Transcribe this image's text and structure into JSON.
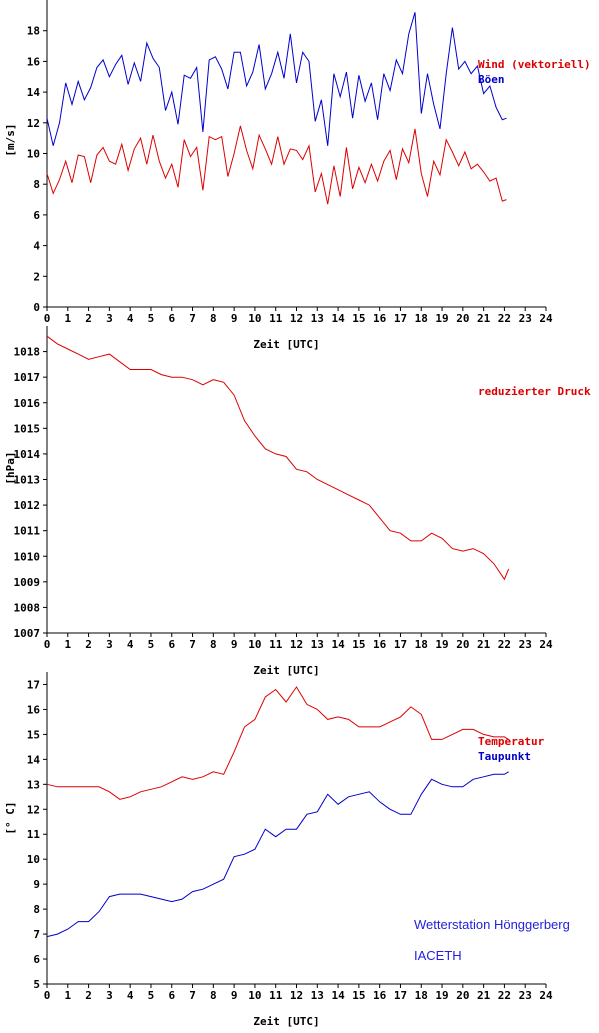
{
  "station": {
    "name": "Wetterstation Hönggerberg",
    "org": "IACETH"
  },
  "chart_data": [
    {
      "type": "line",
      "xlabel": "Zeit [UTC]",
      "ylabel": "[m/s]",
      "xlim": [
        0,
        24
      ],
      "ylim": [
        0,
        20
      ],
      "x_ticks": [
        0,
        1,
        2,
        3,
        4,
        5,
        6,
        7,
        8,
        9,
        10,
        11,
        12,
        13,
        14,
        15,
        16,
        17,
        18,
        19,
        20,
        21,
        22,
        23,
        24
      ],
      "y_ticks": [
        0,
        2,
        4,
        6,
        8,
        10,
        12,
        14,
        16,
        18
      ],
      "series": [
        {
          "name": "Wind (vektoriell)",
          "color": "#dd0000",
          "x": [
            0,
            0.3,
            0.6,
            0.9,
            1.2,
            1.5,
            1.8,
            2.1,
            2.4,
            2.7,
            3,
            3.3,
            3.6,
            3.9,
            4.2,
            4.5,
            4.8,
            5.1,
            5.4,
            5.7,
            6,
            6.3,
            6.6,
            6.9,
            7.2,
            7.5,
            7.8,
            8.1,
            8.4,
            8.7,
            9,
            9.3,
            9.6,
            9.9,
            10.2,
            10.5,
            10.8,
            11.1,
            11.4,
            11.7,
            12,
            12.3,
            12.6,
            12.9,
            13.2,
            13.5,
            13.8,
            14.1,
            14.4,
            14.7,
            15,
            15.3,
            15.6,
            15.9,
            16.2,
            16.5,
            16.8,
            17.1,
            17.4,
            17.7,
            18,
            18.3,
            18.6,
            18.9,
            19.2,
            19.5,
            19.8,
            20.1,
            20.4,
            20.7,
            21,
            21.3,
            21.6,
            21.9,
            22.1
          ],
          "y": [
            8.7,
            7.4,
            8.3,
            9.5,
            8.1,
            9.9,
            9.8,
            8.1,
            9.9,
            10.4,
            9.5,
            9.3,
            10.6,
            8.9,
            10.3,
            11.0,
            9.3,
            11.2,
            9.5,
            8.4,
            9.3,
            7.8,
            10.9,
            9.8,
            10.4,
            7.6,
            11.1,
            10.9,
            11.1,
            8.5,
            10.0,
            11.8,
            10.2,
            9.0,
            11.2,
            10.3,
            9.3,
            11.1,
            9.3,
            10.3,
            10.2,
            9.6,
            10.5,
            7.5,
            8.7,
            6.7,
            9.2,
            7.2,
            10.4,
            7.7,
            9.1,
            8.1,
            9.3,
            8.2,
            9.5,
            10.2,
            8.3,
            10.3,
            9.4,
            11.6,
            8.7,
            7.2,
            9.5,
            8.6,
            10.9,
            10.1,
            9.2,
            10.1,
            9.0,
            9.3,
            8.8,
            8.2,
            8.4,
            6.9,
            7.0
          ]
        },
        {
          "name": "Böen",
          "color": "#0000cc",
          "x": [
            0,
            0.3,
            0.6,
            0.9,
            1.2,
            1.5,
            1.8,
            2.1,
            2.4,
            2.7,
            3,
            3.3,
            3.6,
            3.9,
            4.2,
            4.5,
            4.8,
            5.1,
            5.4,
            5.7,
            6,
            6.3,
            6.6,
            6.9,
            7.2,
            7.5,
            7.8,
            8.1,
            8.4,
            8.7,
            9,
            9.3,
            9.6,
            9.9,
            10.2,
            10.5,
            10.8,
            11.1,
            11.4,
            11.7,
            12,
            12.3,
            12.6,
            12.9,
            13.2,
            13.5,
            13.8,
            14.1,
            14.4,
            14.7,
            15,
            15.3,
            15.6,
            15.9,
            16.2,
            16.5,
            16.8,
            17.1,
            17.4,
            17.7,
            18,
            18.3,
            18.6,
            18.9,
            19.2,
            19.5,
            19.8,
            20.1,
            20.4,
            20.7,
            21,
            21.3,
            21.6,
            21.9,
            22.1
          ],
          "y": [
            12.3,
            10.5,
            12.0,
            14.6,
            13.2,
            14.7,
            13.5,
            14.3,
            15.6,
            16.1,
            15.0,
            15.8,
            16.4,
            14.5,
            15.9,
            14.7,
            17.2,
            16.2,
            15.6,
            12.8,
            14.0,
            11.9,
            15.1,
            14.9,
            15.6,
            11.4,
            16.1,
            16.3,
            15.5,
            14.2,
            16.6,
            16.6,
            14.4,
            15.3,
            17.1,
            14.2,
            15.2,
            16.6,
            14.9,
            17.8,
            14.6,
            16.6,
            16.0,
            12.1,
            13.5,
            10.5,
            15.2,
            13.7,
            15.3,
            12.3,
            15.1,
            13.4,
            14.6,
            12.2,
            15.2,
            14.1,
            16.1,
            15.2,
            17.8,
            19.2,
            12.6,
            15.2,
            13.2,
            11.6,
            15.2,
            18.2,
            15.5,
            16.0,
            15.2,
            15.7,
            13.9,
            14.4,
            13.0,
            12.2,
            12.3
          ]
        }
      ]
    },
    {
      "type": "line",
      "xlabel": "Zeit [UTC]",
      "ylabel": "[hPa]",
      "xlim": [
        0,
        24
      ],
      "ylim": [
        1007,
        1019
      ],
      "x_ticks": [
        0,
        1,
        2,
        3,
        4,
        5,
        6,
        7,
        8,
        9,
        10,
        11,
        12,
        13,
        14,
        15,
        16,
        17,
        18,
        19,
        20,
        21,
        22,
        23,
        24
      ],
      "y_ticks": [
        1007,
        1008,
        1009,
        1010,
        1011,
        1012,
        1013,
        1014,
        1015,
        1016,
        1017,
        1018
      ],
      "series": [
        {
          "name": "reduzierter Druck",
          "color": "#dd0000",
          "x": [
            0,
            0.5,
            1,
            1.5,
            2,
            2.5,
            3,
            3.5,
            4,
            4.5,
            5,
            5.5,
            6,
            6.5,
            7,
            7.5,
            8,
            8.5,
            9,
            9.5,
            10,
            10.5,
            11,
            11.5,
            12,
            12.5,
            13,
            13.5,
            14,
            14.5,
            15,
            15.5,
            16,
            16.5,
            17,
            17.5,
            18,
            18.5,
            19,
            19.5,
            20,
            20.5,
            21,
            21.5,
            22,
            22.2
          ],
          "y": [
            1018.6,
            1018.3,
            1018.1,
            1017.9,
            1017.7,
            1017.8,
            1017.9,
            1017.6,
            1017.3,
            1017.3,
            1017.3,
            1017.1,
            1017.0,
            1017.0,
            1016.9,
            1016.7,
            1016.9,
            1016.8,
            1016.3,
            1015.3,
            1014.7,
            1014.2,
            1014.0,
            1013.9,
            1013.4,
            1013.3,
            1013.0,
            1012.8,
            1012.6,
            1012.4,
            1012.2,
            1012.0,
            1011.5,
            1011.0,
            1010.9,
            1010.6,
            1010.6,
            1010.9,
            1010.7,
            1010.3,
            1010.2,
            1010.3,
            1010.1,
            1009.7,
            1009.1,
            1009.5
          ]
        }
      ]
    },
    {
      "type": "line",
      "xlabel": "Zeit [UTC]",
      "ylabel": "[° C]",
      "xlim": [
        0,
        24
      ],
      "ylim": [
        5,
        17.5
      ],
      "x_ticks": [
        0,
        1,
        2,
        3,
        4,
        5,
        6,
        7,
        8,
        9,
        10,
        11,
        12,
        13,
        14,
        15,
        16,
        17,
        18,
        19,
        20,
        21,
        22,
        23,
        24
      ],
      "y_ticks": [
        5,
        6,
        7,
        8,
        9,
        10,
        11,
        12,
        13,
        14,
        15,
        16,
        17
      ],
      "series": [
        {
          "name": "Temperatur",
          "color": "#dd0000",
          "x": [
            0,
            0.5,
            1,
            1.5,
            2,
            2.5,
            3,
            3.5,
            4,
            4.5,
            5,
            5.5,
            6,
            6.5,
            7,
            7.5,
            8,
            8.5,
            9,
            9.5,
            10,
            10.5,
            11,
            11.5,
            12,
            12.5,
            13,
            13.5,
            14,
            14.5,
            15,
            15.5,
            16,
            16.5,
            17,
            17.5,
            18,
            18.5,
            19,
            19.5,
            20,
            20.5,
            21,
            21.5,
            22,
            22.2
          ],
          "y": [
            13.0,
            12.9,
            12.9,
            12.9,
            12.9,
            12.9,
            12.7,
            12.4,
            12.5,
            12.7,
            12.8,
            12.9,
            13.1,
            13.3,
            13.2,
            13.3,
            13.5,
            13.4,
            14.3,
            15.3,
            15.6,
            16.5,
            16.8,
            16.3,
            16.9,
            16.2,
            16.0,
            15.6,
            15.7,
            15.6,
            15.3,
            15.3,
            15.3,
            15.5,
            15.7,
            16.1,
            15.8,
            14.8,
            14.8,
            15.0,
            15.2,
            15.2,
            15.0,
            14.9,
            14.9,
            14.8
          ]
        },
        {
          "name": "Taupunkt",
          "color": "#0000cc",
          "x": [
            0,
            0.5,
            1,
            1.5,
            2,
            2.5,
            3,
            3.5,
            4,
            4.5,
            5,
            5.5,
            6,
            6.5,
            7,
            7.5,
            8,
            8.5,
            9,
            9.5,
            10,
            10.5,
            11,
            11.5,
            12,
            12.5,
            13,
            13.5,
            14,
            14.5,
            15,
            15.5,
            16,
            16.5,
            17,
            17.5,
            18,
            18.5,
            19,
            19.5,
            20,
            20.5,
            21,
            21.5,
            22,
            22.2
          ],
          "y": [
            6.9,
            7.0,
            7.2,
            7.5,
            7.5,
            7.9,
            8.5,
            8.6,
            8.6,
            8.6,
            8.5,
            8.4,
            8.3,
            8.4,
            8.7,
            8.8,
            9.0,
            9.2,
            10.1,
            10.2,
            10.4,
            11.2,
            10.9,
            11.2,
            11.2,
            11.8,
            11.9,
            12.6,
            12.2,
            12.5,
            12.6,
            12.7,
            12.3,
            12.0,
            11.8,
            11.8,
            12.6,
            13.2,
            13.0,
            12.9,
            12.9,
            13.2,
            13.3,
            13.4,
            13.4,
            13.5
          ]
        }
      ]
    }
  ]
}
